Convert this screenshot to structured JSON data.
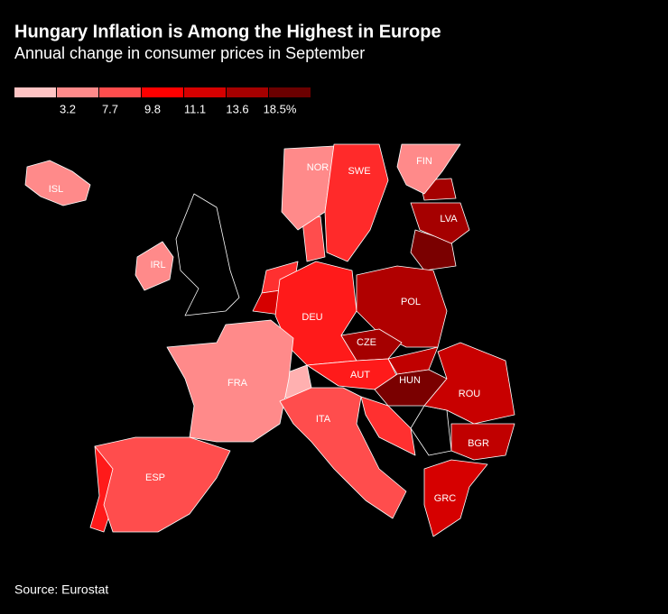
{
  "header": {
    "title": "Hungary Inflation is Among the Highest in Europe",
    "subtitle": "Annual change in consumer prices in September"
  },
  "legend": {
    "colors": [
      "#ffc4c4",
      "#ff8a8a",
      "#ff4d4d",
      "#ff0000",
      "#d60000",
      "#a50000",
      "#6b0000"
    ],
    "labels": [
      "3.2",
      "7.7",
      "9.8",
      "11.1",
      "13.6",
      "18.5%"
    ]
  },
  "countries": [
    {
      "label": "ISL",
      "color": "#ff8a8a"
    },
    {
      "label": "NOR",
      "color": "#ff8a8a"
    },
    {
      "label": "SWE",
      "color": "#ff2a2a"
    },
    {
      "label": "FIN",
      "color": "#ff8a8a"
    },
    {
      "label": "LVA",
      "color": "#a50000"
    },
    {
      "label": "IRL",
      "color": "#ff8a8a"
    },
    {
      "label": "DEU",
      "color": "#ff1a1a"
    },
    {
      "label": "POL",
      "color": "#b00000"
    },
    {
      "label": "CZE",
      "color": "#a50000"
    },
    {
      "label": "AUT",
      "color": "#ff1a1a"
    },
    {
      "label": "HUN",
      "color": "#7a0000"
    },
    {
      "label": "ROU",
      "color": "#c80000"
    },
    {
      "label": "FRA",
      "color": "#ff8a8a"
    },
    {
      "label": "ITA",
      "color": "#ff4d4d"
    },
    {
      "label": "ESP",
      "color": "#ff4d4d"
    },
    {
      "label": "BGR",
      "color": "#c00000"
    },
    {
      "label": "GRC",
      "color": "#d60000"
    }
  ],
  "footer": {
    "source": "Source: Eurostat"
  }
}
